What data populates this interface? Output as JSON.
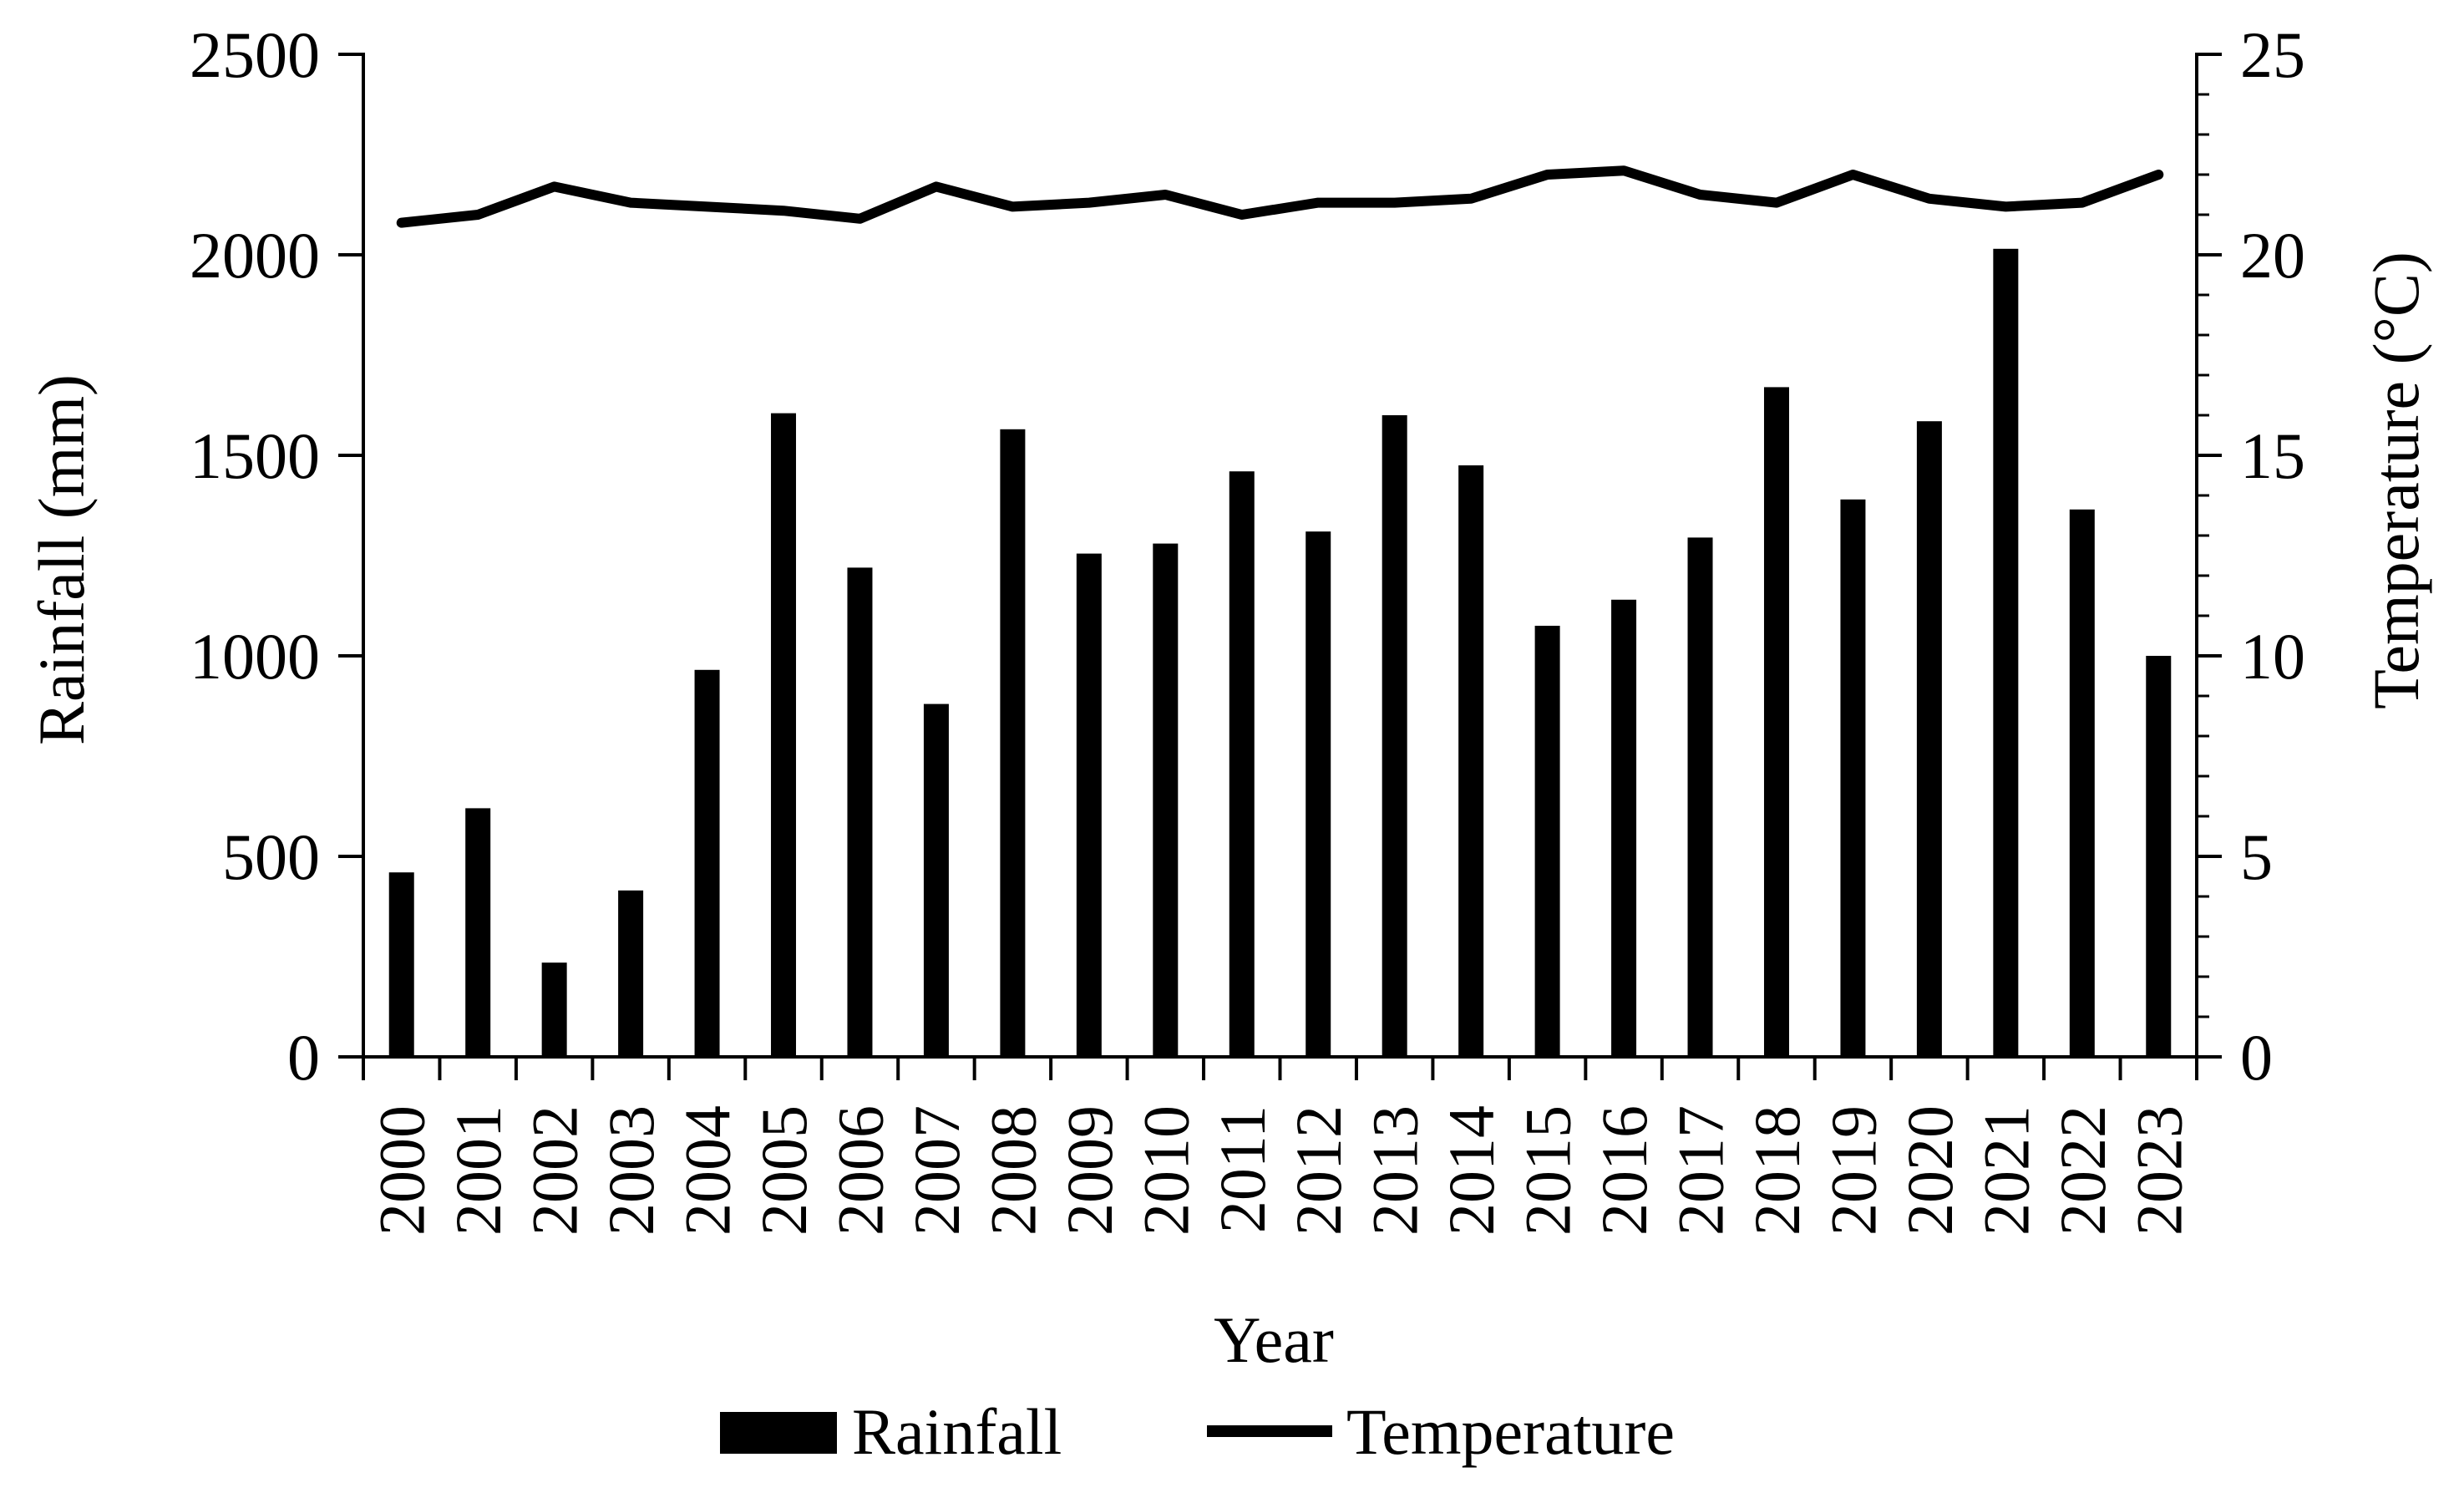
{
  "chart_data": {
    "type": "bar+line",
    "title": "",
    "xlabel": "Year",
    "ylabel_left": "Rainfall (mm)",
    "ylabel_right": "Temperature (°C)",
    "categories": [
      "2000",
      "2001",
      "2002",
      "2003",
      "2004",
      "2005",
      "2006",
      "2007",
      "2008",
      "2009",
      "2010",
      "2011",
      "2012",
      "2013",
      "2014",
      "2015",
      "2016",
      "2017",
      "2018",
      "2019",
      "2020",
      "2021",
      "2022",
      "2023"
    ],
    "ylim_left": [
      0,
      2500
    ],
    "yticks_left": [
      0,
      500,
      1000,
      1500,
      2000,
      2500
    ],
    "ylim_right": [
      0,
      25
    ],
    "yticks_right": [
      0,
      5,
      10,
      15,
      20,
      25
    ],
    "grid": false,
    "legend_position": "bottom-center",
    "series": [
      {
        "name": "Rainfall",
        "type": "bar",
        "axis": "left",
        "color": "#000000",
        "values": [
          460,
          620,
          235,
          415,
          965,
          1605,
          1220,
          880,
          1565,
          1255,
          1280,
          1460,
          1310,
          1600,
          1475,
          1075,
          1140,
          1295,
          1670,
          1390,
          1585,
          2015,
          1365,
          1000
        ]
      },
      {
        "name": "Temperature",
        "type": "line",
        "axis": "right",
        "color": "#000000",
        "values": [
          20.8,
          21.0,
          21.7,
          21.3,
          21.2,
          21.1,
          20.9,
          21.7,
          21.2,
          21.3,
          21.5,
          21.0,
          21.3,
          21.3,
          21.4,
          22.0,
          22.1,
          21.5,
          21.3,
          22.0,
          21.4,
          21.2,
          21.3,
          22.0
        ]
      }
    ]
  }
}
